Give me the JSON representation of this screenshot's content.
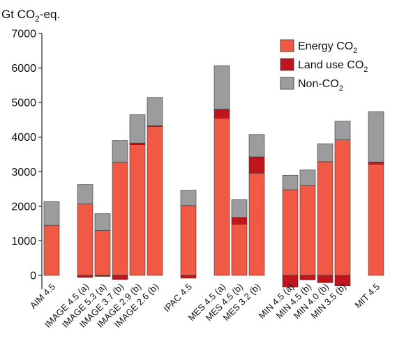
{
  "colors": {
    "energy": "#f05a44",
    "land": "#c0151c",
    "nonco2": "#9c9c9e",
    "axis": "#222222"
  },
  "chart_data": {
    "type": "bar",
    "stacked": true,
    "ylabel_main": "Gt CO",
    "ylabel_sub": "2",
    "ylabel_tail": "-eq.",
    "ylim": [
      -400,
      7000
    ],
    "yticks": [
      "0",
      "1000",
      "2000",
      "3000",
      "4000",
      "5000",
      "6000",
      "7000"
    ],
    "legend_position": "top-right",
    "categories": [
      "AIM 4.5",
      "IMAGE 4.5 (a)",
      "IMAGE 5.3 (a)",
      "IMAGE 3.7 (b)",
      "IMAGE 2.9 (b)",
      "IMAGE 2.6 (b)",
      "IPAC 4.5",
      "MES 4.5 (a)",
      "MES 4.5 (b)",
      "MES 3.2 (b)",
      "MIN 4.5 (a)",
      "MIN 4.5 (b)",
      "MIN 4.0 (b)",
      "MIN 3.5 (b)",
      "MIT 4.5"
    ],
    "groups": [
      [
        0
      ],
      [
        1,
        2,
        3,
        4,
        5
      ],
      [
        6
      ],
      [
        7,
        8,
        9
      ],
      [
        10,
        11,
        12,
        13
      ],
      [
        14
      ]
    ],
    "series": [
      {
        "key": "energy",
        "legend_main": "Energy CO",
        "legend_sub": "2",
        "legend_tail": "",
        "values": [
          1450,
          2070,
          1300,
          3270,
          3780,
          4310,
          2020,
          4550,
          1480,
          2960,
          2480,
          2600,
          3290,
          3920,
          3220
        ]
      },
      {
        "key": "land",
        "legend_main": "Land use CO",
        "legend_sub": "2",
        "legend_tail": "",
        "values": [
          0,
          -60,
          -30,
          -120,
          50,
          20,
          -80,
          260,
          200,
          470,
          -340,
          -130,
          -210,
          -300,
          60
        ]
      },
      {
        "key": "nonco2",
        "legend_main": "Non-CO",
        "legend_sub": "2",
        "legend_tail": "",
        "values": [
          690,
          560,
          490,
          630,
          820,
          820,
          440,
          1260,
          510,
          650,
          420,
          450,
          520,
          540,
          1460
        ]
      }
    ]
  }
}
